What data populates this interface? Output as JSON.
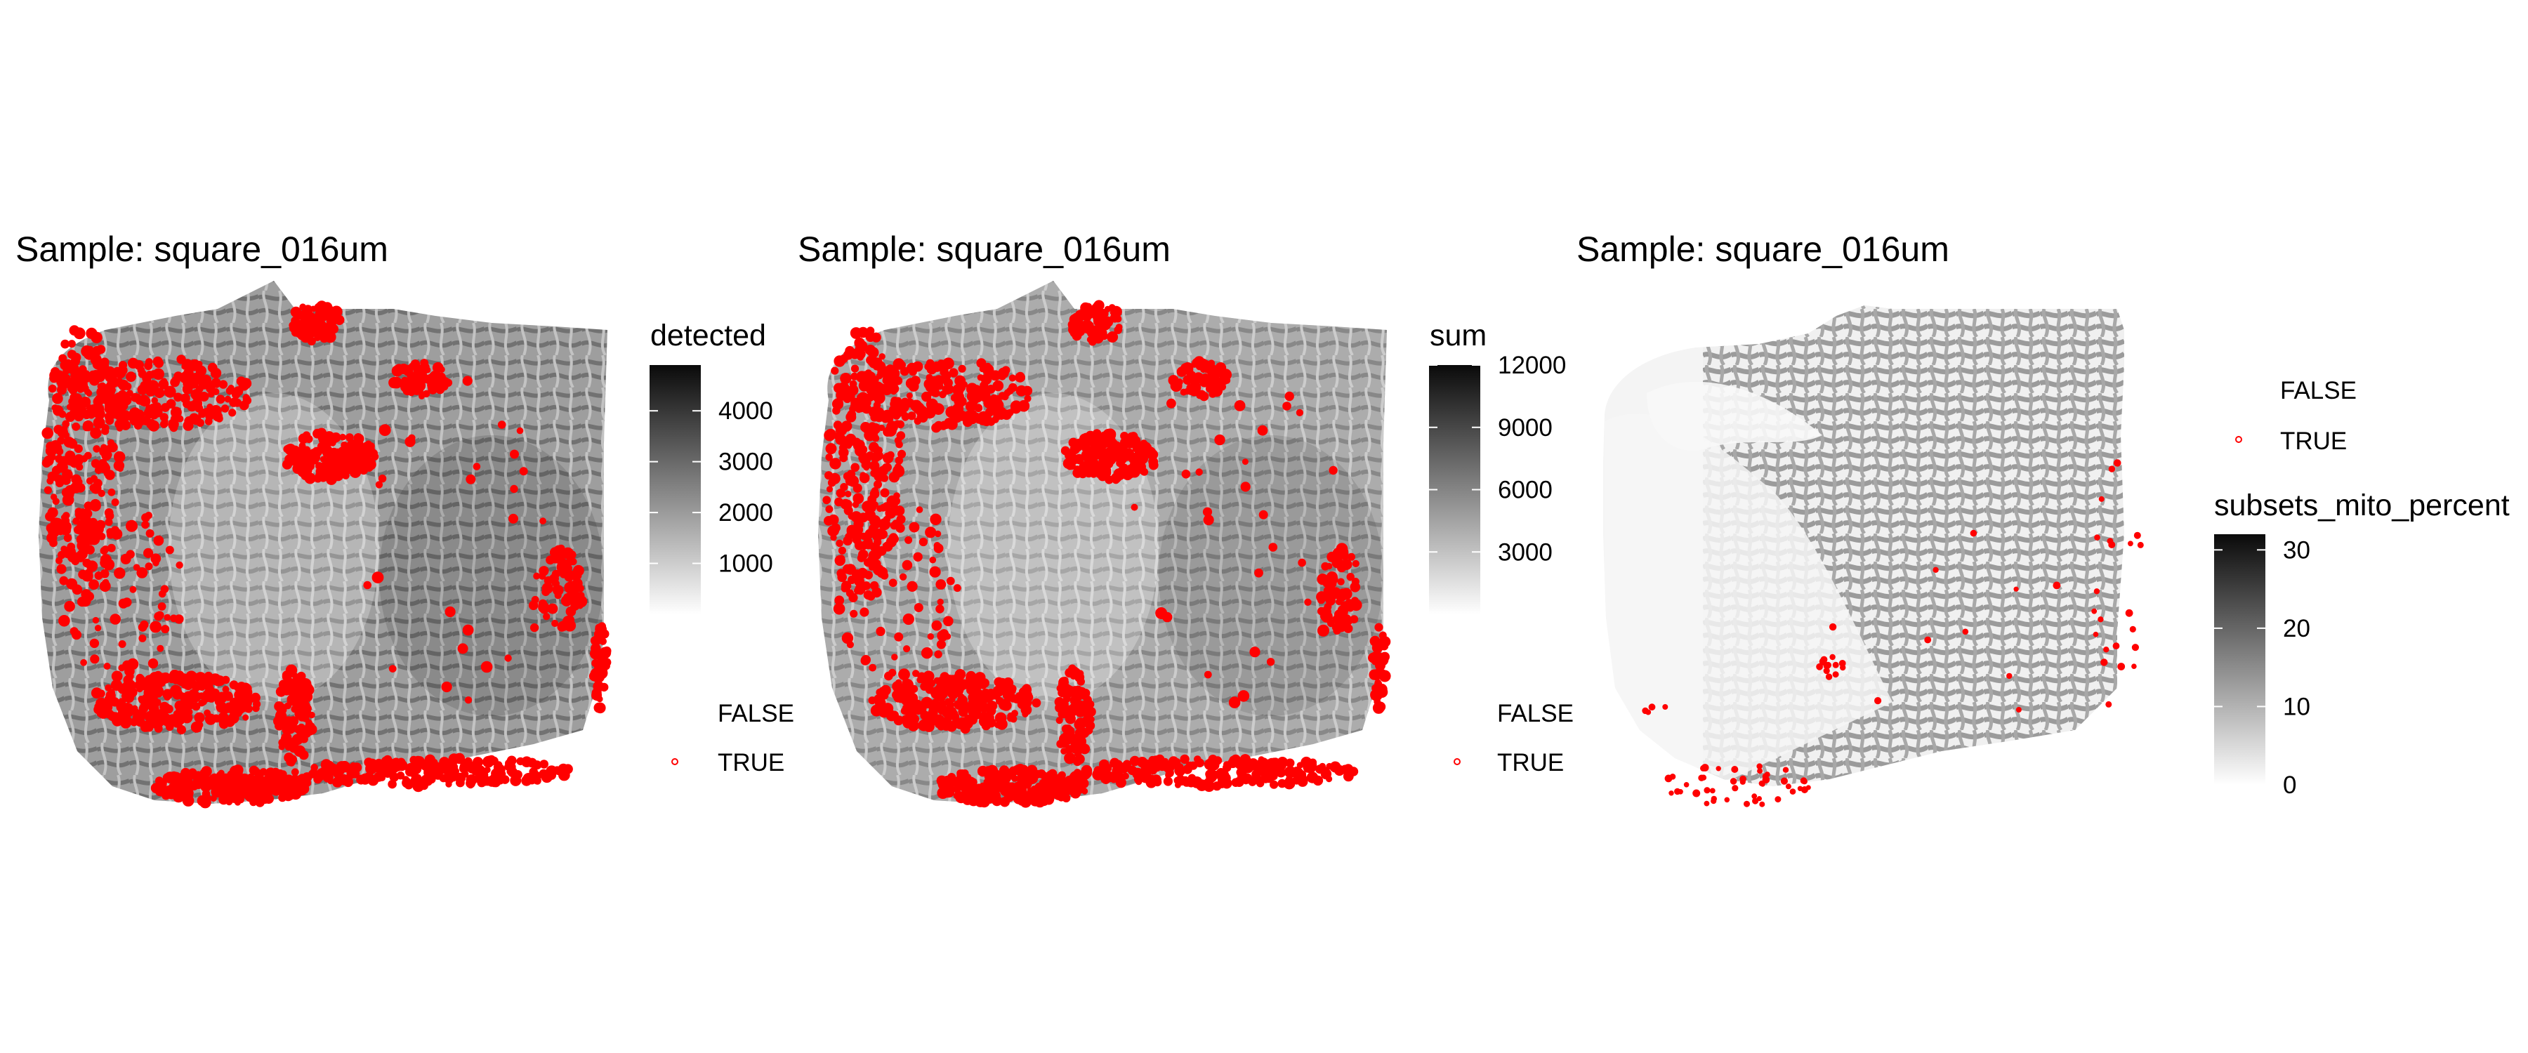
{
  "colors": {
    "background": "#ffffff",
    "outlier_marker": "#ff0000",
    "gradient_low": "#ffffff",
    "gradient_high": "#0a0a0a"
  },
  "chart_data": [
    {
      "type": "spatial-scatter",
      "title": "Sample: square_016um",
      "color_legend": {
        "title": "detected",
        "ticks": [
          1000,
          2000,
          3000,
          4000
        ],
        "range": [
          0,
          4900
        ]
      },
      "outlier_legend": {
        "entries": [
          {
            "label": "FALSE",
            "marker": "none"
          },
          {
            "label": "TRUE",
            "marker": "red-open-circle"
          }
        ]
      },
      "tissue_intensity": 0.58
    },
    {
      "type": "spatial-scatter",
      "title": "Sample: square_016um",
      "color_legend": {
        "title": "sum",
        "ticks": [
          3000,
          6000,
          9000,
          12000
        ],
        "range": [
          0,
          12000
        ]
      },
      "outlier_legend": {
        "entries": [
          {
            "label": "FALSE",
            "marker": "none"
          },
          {
            "label": "TRUE",
            "marker": "red-open-circle"
          }
        ]
      },
      "tissue_intensity": 0.5
    },
    {
      "type": "spatial-scatter",
      "title": "Sample: square_016um",
      "outlier_legend": {
        "entries": [
          {
            "label": "FALSE",
            "marker": "none"
          },
          {
            "label": "TRUE",
            "marker": "red-open-circle"
          }
        ]
      },
      "color_legend": {
        "title": "subsets_mito_percent",
        "ticks": [
          0,
          10,
          20,
          30
        ],
        "range": [
          0,
          32
        ]
      },
      "tissue_intensity": 0.12
    }
  ]
}
